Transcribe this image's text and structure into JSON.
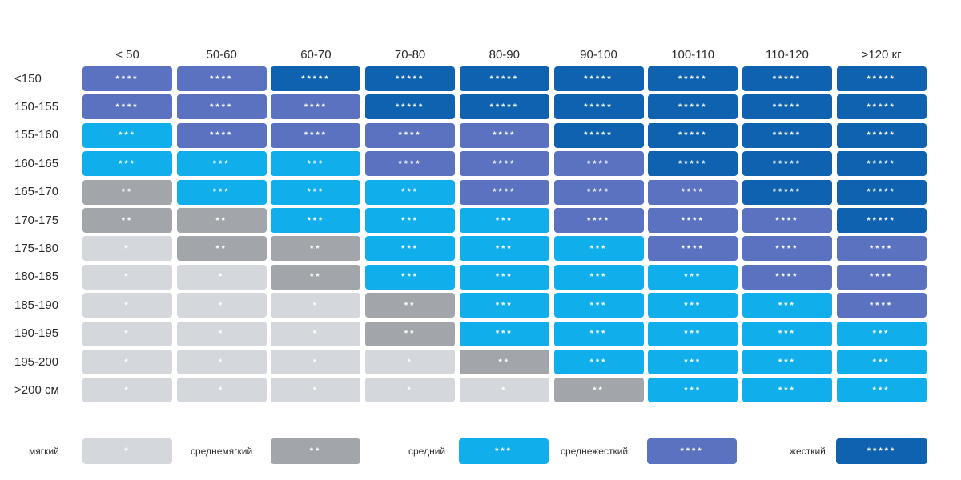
{
  "chart_data": {
    "type": "heatmap",
    "columns": [
      "< 50",
      "50-60",
      "60-70",
      "70-80",
      "80-90",
      "90-100",
      "100-110",
      "110-120",
      ">120 кг"
    ],
    "rows": [
      "<150",
      "150-155",
      "155-160",
      "160-165",
      "165-170",
      "170-175",
      "175-180",
      "180-185",
      "185-190",
      "190-195",
      "195-200",
      ">200 см"
    ],
    "values": [
      [
        4,
        4,
        5,
        5,
        5,
        5,
        5,
        5,
        5
      ],
      [
        4,
        4,
        4,
        5,
        5,
        5,
        5,
        5,
        5
      ],
      [
        3,
        4,
        4,
        4,
        4,
        5,
        5,
        5,
        5
      ],
      [
        3,
        3,
        3,
        4,
        4,
        4,
        5,
        5,
        5
      ],
      [
        2,
        3,
        3,
        3,
        4,
        4,
        4,
        5,
        5
      ],
      [
        2,
        2,
        3,
        3,
        3,
        4,
        4,
        4,
        5
      ],
      [
        1,
        2,
        2,
        3,
        3,
        3,
        4,
        4,
        4
      ],
      [
        1,
        1,
        2,
        3,
        3,
        3,
        3,
        4,
        4
      ],
      [
        1,
        1,
        1,
        2,
        3,
        3,
        3,
        3,
        4
      ],
      [
        1,
        1,
        1,
        2,
        3,
        3,
        3,
        3,
        3
      ],
      [
        1,
        1,
        1,
        1,
        2,
        3,
        3,
        3,
        3
      ],
      [
        1,
        1,
        1,
        1,
        1,
        2,
        3,
        3,
        3
      ]
    ],
    "levels": [
      {
        "value": 1,
        "label": "мягкий",
        "marker": "*",
        "color": "#d4d7db"
      },
      {
        "value": 2,
        "label": "среднемягкий",
        "marker": "**",
        "color": "#a2a6ab"
      },
      {
        "value": 3,
        "label": "средний",
        "marker": "***",
        "color": "#10aeea"
      },
      {
        "value": 4,
        "label": "среднежесткий",
        "marker": "****",
        "color": "#5b72c0"
      },
      {
        "value": 5,
        "label": "жесткий",
        "marker": "*****",
        "color": "#0e62b0"
      }
    ]
  }
}
